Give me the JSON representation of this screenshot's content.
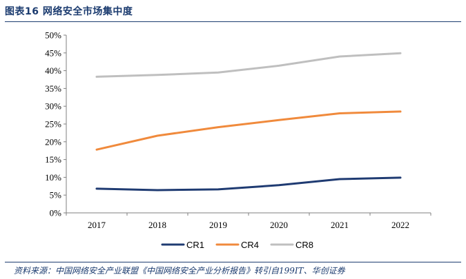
{
  "figure": {
    "title": "图表16 网络安全市场集中度",
    "source": "资料来源：中国网络安全产业联盟《中国网络安全产业分析报告》转引自199IT、华创证券"
  },
  "chart_data": {
    "type": "line",
    "title": "",
    "xlabel": "",
    "ylabel": "",
    "x": [
      "2017",
      "2018",
      "2019",
      "2020",
      "2021",
      "2022"
    ],
    "ylim": [
      0,
      50
    ],
    "yticks": [
      0,
      5,
      10,
      15,
      20,
      25,
      30,
      35,
      40,
      45,
      50
    ],
    "ytick_labels": [
      "0%",
      "5%",
      "10%",
      "15%",
      "20%",
      "25%",
      "30%",
      "35%",
      "40%",
      "45%",
      "50%"
    ],
    "grid": false,
    "legend_position": "bottom",
    "series": [
      {
        "name": "CR1",
        "color": "#1f3b72",
        "values": [
          6.8,
          6.4,
          6.6,
          7.8,
          9.5,
          9.9
        ]
      },
      {
        "name": "CR4",
        "color": "#f08a3c",
        "values": [
          17.8,
          21.7,
          24.1,
          26.1,
          28.0,
          28.5
        ]
      },
      {
        "name": "CR8",
        "color": "#bfbfbf",
        "values": [
          38.3,
          38.8,
          39.5,
          41.4,
          44.0,
          44.9
        ]
      }
    ]
  }
}
